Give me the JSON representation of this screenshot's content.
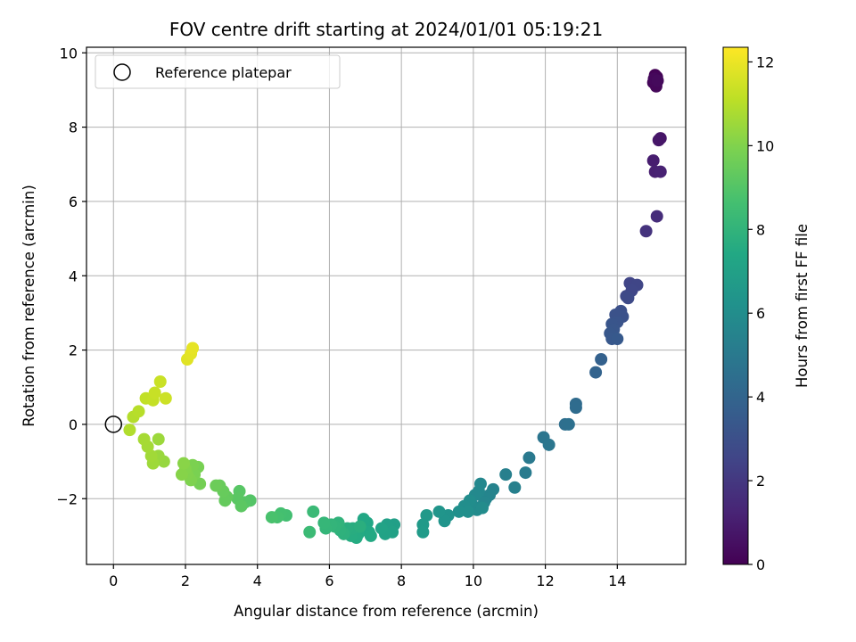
{
  "chart_data": {
    "type": "scatter",
    "title": "FOV centre drift starting at 2024/01/01 05:19:21",
    "xlabel": "Angular distance from reference (arcmin)",
    "ylabel": "Rotation from reference (arcmin)",
    "xlim": [
      -0.75,
      15.9
    ],
    "ylim": [
      -3.77,
      10.15
    ],
    "xticks": [
      0,
      2,
      4,
      6,
      8,
      10,
      12,
      14
    ],
    "yticks": [
      -2,
      0,
      2,
      4,
      6,
      8,
      10
    ],
    "grid": true,
    "legend": {
      "position": "top-left",
      "entries": [
        {
          "label": "Reference platepar",
          "marker": "open-circle"
        }
      ]
    },
    "reference_point": {
      "x": 0,
      "y": 0
    },
    "colorbar": {
      "label": "Hours from first FF file",
      "colormap": "viridis",
      "range": [
        0,
        12.35
      ],
      "ticks": [
        0,
        2,
        4,
        6,
        8,
        10,
        12
      ]
    },
    "points": [
      {
        "x": 15.05,
        "y": 9.4,
        "c": 0.05
      },
      {
        "x": 15.1,
        "y": 9.35,
        "c": 0.1
      },
      {
        "x": 15.0,
        "y": 9.2,
        "c": 0.15
      },
      {
        "x": 15.08,
        "y": 9.1,
        "c": 0.2
      },
      {
        "x": 15.02,
        "y": 9.3,
        "c": 0.25
      },
      {
        "x": 15.12,
        "y": 9.25,
        "c": 0.3
      },
      {
        "x": 15.2,
        "y": 7.7,
        "c": 0.7
      },
      {
        "x": 15.15,
        "y": 7.65,
        "c": 0.75
      },
      {
        "x": 15.0,
        "y": 7.1,
        "c": 1.0
      },
      {
        "x": 15.05,
        "y": 6.8,
        "c": 1.1
      },
      {
        "x": 15.2,
        "y": 6.8,
        "c": 1.15
      },
      {
        "x": 15.1,
        "y": 5.6,
        "c": 1.6
      },
      {
        "x": 14.8,
        "y": 5.2,
        "c": 1.8
      },
      {
        "x": 14.35,
        "y": 3.8,
        "c": 2.5
      },
      {
        "x": 14.55,
        "y": 3.75,
        "c": 2.55
      },
      {
        "x": 14.4,
        "y": 3.6,
        "c": 2.6
      },
      {
        "x": 14.25,
        "y": 3.45,
        "c": 2.7
      },
      {
        "x": 14.3,
        "y": 3.4,
        "c": 2.75
      },
      {
        "x": 14.1,
        "y": 3.05,
        "c": 3.0
      },
      {
        "x": 14.15,
        "y": 2.9,
        "c": 3.05
      },
      {
        "x": 13.95,
        "y": 2.95,
        "c": 3.1
      },
      {
        "x": 14.0,
        "y": 2.75,
        "c": 3.2
      },
      {
        "x": 13.85,
        "y": 2.7,
        "c": 3.25
      },
      {
        "x": 13.9,
        "y": 2.55,
        "c": 3.3
      },
      {
        "x": 13.8,
        "y": 2.45,
        "c": 3.35
      },
      {
        "x": 13.85,
        "y": 2.3,
        "c": 3.4
      },
      {
        "x": 14.0,
        "y": 2.3,
        "c": 3.45
      },
      {
        "x": 13.55,
        "y": 1.75,
        "c": 3.8
      },
      {
        "x": 13.4,
        "y": 1.4,
        "c": 3.9
      },
      {
        "x": 12.85,
        "y": 0.55,
        "c": 4.3
      },
      {
        "x": 12.85,
        "y": 0.45,
        "c": 4.35
      },
      {
        "x": 12.55,
        "y": 0.0,
        "c": 4.5
      },
      {
        "x": 12.65,
        "y": 0.0,
        "c": 4.55
      },
      {
        "x": 11.95,
        "y": -0.35,
        "c": 4.8
      },
      {
        "x": 12.1,
        "y": -0.55,
        "c": 4.85
      },
      {
        "x": 11.55,
        "y": -0.9,
        "c": 5.0
      },
      {
        "x": 11.45,
        "y": -1.3,
        "c": 5.1
      },
      {
        "x": 10.9,
        "y": -1.35,
        "c": 5.3
      },
      {
        "x": 11.15,
        "y": -1.7,
        "c": 5.35
      },
      {
        "x": 10.55,
        "y": -1.75,
        "c": 5.5
      },
      {
        "x": 10.45,
        "y": -1.9,
        "c": 5.55
      },
      {
        "x": 10.35,
        "y": -2.0,
        "c": 5.6
      },
      {
        "x": 10.3,
        "y": -2.1,
        "c": 5.65
      },
      {
        "x": 10.2,
        "y": -1.6,
        "c": 5.7
      },
      {
        "x": 10.15,
        "y": -1.8,
        "c": 5.75
      },
      {
        "x": 10.05,
        "y": -1.9,
        "c": 5.8
      },
      {
        "x": 10.0,
        "y": -2.2,
        "c": 5.85
      },
      {
        "x": 10.1,
        "y": -2.3,
        "c": 5.9
      },
      {
        "x": 10.25,
        "y": -2.25,
        "c": 5.95
      },
      {
        "x": 9.9,
        "y": -2.05,
        "c": 6.0
      },
      {
        "x": 9.75,
        "y": -2.2,
        "c": 6.05
      },
      {
        "x": 9.85,
        "y": -2.35,
        "c": 6.1
      },
      {
        "x": 9.6,
        "y": -2.35,
        "c": 6.15
      },
      {
        "x": 9.3,
        "y": -2.45,
        "c": 6.3
      },
      {
        "x": 9.2,
        "y": -2.6,
        "c": 6.35
      },
      {
        "x": 9.05,
        "y": -2.35,
        "c": 6.4
      },
      {
        "x": 8.7,
        "y": -2.45,
        "c": 6.6
      },
      {
        "x": 8.6,
        "y": -2.7,
        "c": 6.65
      },
      {
        "x": 8.6,
        "y": -2.9,
        "c": 6.7
      },
      {
        "x": 7.8,
        "y": -2.7,
        "c": 6.9
      },
      {
        "x": 7.7,
        "y": -2.8,
        "c": 6.95
      },
      {
        "x": 7.6,
        "y": -2.7,
        "c": 7.0
      },
      {
        "x": 7.75,
        "y": -2.9,
        "c": 7.05
      },
      {
        "x": 7.55,
        "y": -2.95,
        "c": 7.1
      },
      {
        "x": 7.45,
        "y": -2.8,
        "c": 7.15
      },
      {
        "x": 7.05,
        "y": -2.65,
        "c": 7.3
      },
      {
        "x": 6.95,
        "y": -2.55,
        "c": 7.35
      },
      {
        "x": 7.1,
        "y": -2.9,
        "c": 7.4
      },
      {
        "x": 7.15,
        "y": -3.0,
        "c": 7.45
      },
      {
        "x": 6.8,
        "y": -2.95,
        "c": 7.5
      },
      {
        "x": 6.75,
        "y": -3.05,
        "c": 7.55
      },
      {
        "x": 6.6,
        "y": -3.0,
        "c": 7.6
      },
      {
        "x": 6.65,
        "y": -2.8,
        "c": 7.65
      },
      {
        "x": 6.5,
        "y": -2.8,
        "c": 7.7
      },
      {
        "x": 6.85,
        "y": -2.75,
        "c": 7.75
      },
      {
        "x": 6.4,
        "y": -2.95,
        "c": 7.85
      },
      {
        "x": 6.3,
        "y": -2.85,
        "c": 7.9
      },
      {
        "x": 6.25,
        "y": -2.65,
        "c": 7.95
      },
      {
        "x": 6.15,
        "y": -2.75,
        "c": 8.0
      },
      {
        "x": 6.05,
        "y": -2.7,
        "c": 8.05
      },
      {
        "x": 5.9,
        "y": -2.8,
        "c": 8.1
      },
      {
        "x": 5.85,
        "y": -2.65,
        "c": 8.15
      },
      {
        "x": 5.55,
        "y": -2.35,
        "c": 8.3
      },
      {
        "x": 5.45,
        "y": -2.9,
        "c": 8.35
      },
      {
        "x": 4.8,
        "y": -2.45,
        "c": 8.6
      },
      {
        "x": 4.65,
        "y": -2.4,
        "c": 8.65
      },
      {
        "x": 4.55,
        "y": -2.5,
        "c": 8.7
      },
      {
        "x": 4.4,
        "y": -2.5,
        "c": 8.75
      },
      {
        "x": 3.8,
        "y": -2.05,
        "c": 9.0
      },
      {
        "x": 3.65,
        "y": -2.1,
        "c": 9.05
      },
      {
        "x": 3.5,
        "y": -1.8,
        "c": 9.1
      },
      {
        "x": 3.45,
        "y": -2.0,
        "c": 9.15
      },
      {
        "x": 3.55,
        "y": -2.2,
        "c": 9.2
      },
      {
        "x": 3.15,
        "y": -1.95,
        "c": 9.35
      },
      {
        "x": 3.1,
        "y": -2.05,
        "c": 9.4
      },
      {
        "x": 3.05,
        "y": -1.8,
        "c": 9.45
      },
      {
        "x": 2.95,
        "y": -1.65,
        "c": 9.5
      },
      {
        "x": 2.85,
        "y": -1.65,
        "c": 9.55
      },
      {
        "x": 2.4,
        "y": -1.6,
        "c": 9.75
      },
      {
        "x": 2.35,
        "y": -1.15,
        "c": 9.8
      },
      {
        "x": 2.25,
        "y": -1.35,
        "c": 9.85
      },
      {
        "x": 2.2,
        "y": -1.1,
        "c": 9.9
      },
      {
        "x": 2.15,
        "y": -1.5,
        "c": 9.95
      },
      {
        "x": 2.05,
        "y": -1.35,
        "c": 10.0
      },
      {
        "x": 2.0,
        "y": -1.2,
        "c": 10.05
      },
      {
        "x": 1.9,
        "y": -1.35,
        "c": 10.1
      },
      {
        "x": 1.95,
        "y": -1.05,
        "c": 10.15
      },
      {
        "x": 1.4,
        "y": -1.0,
        "c": 10.4
      },
      {
        "x": 1.25,
        "y": -0.85,
        "c": 10.45
      },
      {
        "x": 1.25,
        "y": -0.4,
        "c": 10.5
      },
      {
        "x": 1.1,
        "y": -1.05,
        "c": 10.55
      },
      {
        "x": 1.05,
        "y": -0.85,
        "c": 10.6
      },
      {
        "x": 0.95,
        "y": -0.6,
        "c": 10.65
      },
      {
        "x": 0.85,
        "y": -0.4,
        "c": 10.7
      },
      {
        "x": 0.45,
        "y": -0.15,
        "c": 10.9
      },
      {
        "x": 0.55,
        "y": 0.2,
        "c": 10.95
      },
      {
        "x": 0.7,
        "y": 0.35,
        "c": 11.0
      },
      {
        "x": 0.9,
        "y": 0.7,
        "c": 11.2
      },
      {
        "x": 1.1,
        "y": 0.65,
        "c": 11.25
      },
      {
        "x": 1.15,
        "y": 0.85,
        "c": 11.3
      },
      {
        "x": 1.3,
        "y": 1.15,
        "c": 11.35
      },
      {
        "x": 1.45,
        "y": 0.7,
        "c": 11.4
      },
      {
        "x": 2.05,
        "y": 1.75,
        "c": 11.8
      },
      {
        "x": 2.15,
        "y": 1.9,
        "c": 11.85
      },
      {
        "x": 2.2,
        "y": 2.05,
        "c": 11.9
      }
    ]
  }
}
